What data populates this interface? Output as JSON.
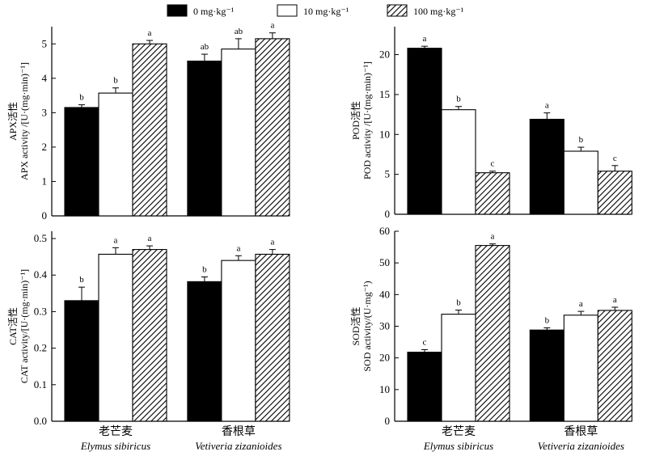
{
  "legend": [
    {
      "label": "0 mg·kg⁻¹",
      "pattern": "solid"
    },
    {
      "label": "10 mg·kg⁻¹",
      "pattern": "empty"
    },
    {
      "label": "100 mg·kg⁻¹",
      "pattern": "hatched"
    }
  ],
  "groups": [
    {
      "zh": "老芒麦",
      "sci": "Elymus sibiricus"
    },
    {
      "zh": "香根草",
      "sci": "Vetiveria zizanioides"
    }
  ],
  "chart_data": [
    {
      "type": "bar",
      "panel": "top-left",
      "ylabel_zh": "APX活性",
      "ylabel": "APX activity /[U·(mg·min)⁻¹]",
      "ylim": [
        0,
        5.5
      ],
      "yticks": [
        "0",
        "1",
        "2",
        "3",
        "4",
        "5"
      ],
      "ytick_values": [
        0,
        1,
        2,
        3,
        4,
        5
      ],
      "categories": [
        "老芒麦",
        "香根草"
      ],
      "series": [
        {
          "name": "0 mg·kg⁻¹",
          "values": [
            3.15,
            4.5
          ],
          "errors": [
            0.08,
            0.2
          ],
          "letters": [
            "b",
            "ab"
          ]
        },
        {
          "name": "10 mg·kg⁻¹",
          "values": [
            3.57,
            4.85
          ],
          "errors": [
            0.15,
            0.3
          ],
          "letters": [
            "b",
            "ab"
          ]
        },
        {
          "name": "100 mg·kg⁻¹",
          "values": [
            5.0,
            5.15
          ],
          "errors": [
            0.1,
            0.17
          ],
          "letters": [
            "a",
            "a"
          ]
        }
      ]
    },
    {
      "type": "bar",
      "panel": "top-right",
      "ylabel_zh": "POD活性",
      "ylabel": "POD activity /[U·(mg·min)⁻¹]",
      "ylim": [
        0,
        23.5
      ],
      "yticks": [
        "0",
        "5",
        "10",
        "15",
        "20"
      ],
      "ytick_values": [
        0,
        5,
        10,
        15,
        20
      ],
      "categories": [
        "老芒麦",
        "香根草"
      ],
      "series": [
        {
          "name": "0 mg·kg⁻¹",
          "values": [
            20.8,
            11.9
          ],
          "errors": [
            0.25,
            0.8
          ],
          "letters": [
            "a",
            "a"
          ]
        },
        {
          "name": "10 mg·kg⁻¹",
          "values": [
            13.1,
            7.9
          ],
          "errors": [
            0.4,
            0.5
          ],
          "letters": [
            "b",
            "b"
          ]
        },
        {
          "name": "100 mg·kg⁻¹",
          "values": [
            5.2,
            5.4
          ],
          "errors": [
            0.2,
            0.7
          ],
          "letters": [
            "c",
            "c"
          ]
        }
      ]
    },
    {
      "type": "bar",
      "panel": "bottom-left",
      "ylabel_zh": "CAT活性",
      "ylabel": "CAT activity/[U·(mg·min)⁻¹]",
      "ylim": [
        0,
        0.52
      ],
      "yticks": [
        "0.0",
        "0.1",
        "0.2",
        "0.3",
        "0.4",
        "0.5"
      ],
      "ytick_values": [
        0,
        0.1,
        0.2,
        0.3,
        0.4,
        0.5
      ],
      "categories": [
        "老芒麦",
        "香根草"
      ],
      "series": [
        {
          "name": "0 mg·kg⁻¹",
          "values": [
            0.33,
            0.382
          ],
          "errors": [
            0.037,
            0.013
          ],
          "letters": [
            "b",
            "b"
          ]
        },
        {
          "name": "10 mg·kg⁻¹",
          "values": [
            0.457,
            0.44
          ],
          "errors": [
            0.018,
            0.013
          ],
          "letters": [
            "a",
            "a"
          ]
        },
        {
          "name": "100 mg·kg⁻¹",
          "values": [
            0.47,
            0.457
          ],
          "errors": [
            0.01,
            0.013
          ],
          "letters": [
            "a",
            "a"
          ]
        }
      ]
    },
    {
      "type": "bar",
      "panel": "bottom-right",
      "ylabel_zh": "SOD活性",
      "ylabel": "SOD activity/(U·mg⁻¹)",
      "ylim": [
        0,
        60
      ],
      "yticks": [
        "0",
        "10",
        "20",
        "30",
        "40",
        "50",
        "60"
      ],
      "ytick_values": [
        0,
        10,
        20,
        30,
        40,
        50,
        60
      ],
      "categories": [
        "老芒麦",
        "香根草"
      ],
      "series": [
        {
          "name": "0 mg·kg⁻¹",
          "values": [
            21.8,
            28.8
          ],
          "errors": [
            0.8,
            0.7
          ],
          "letters": [
            "c",
            "b"
          ]
        },
        {
          "name": "10 mg·kg⁻¹",
          "values": [
            33.8,
            33.5
          ],
          "errors": [
            1.3,
            1.2
          ],
          "letters": [
            "b",
            "a"
          ]
        },
        {
          "name": "100 mg·kg⁻¹",
          "values": [
            55.5,
            35.0
          ],
          "errors": [
            0.5,
            1.0
          ],
          "letters": [
            "a",
            "a"
          ]
        }
      ]
    }
  ]
}
